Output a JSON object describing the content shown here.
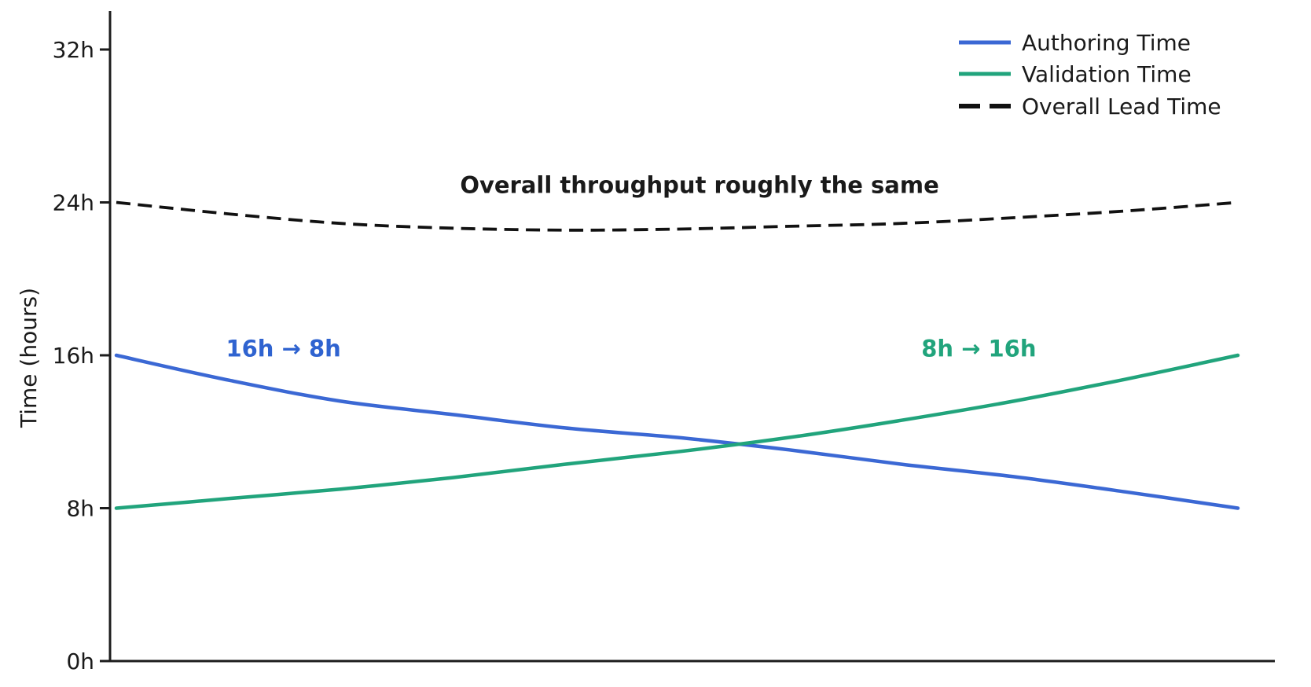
{
  "chart_data": {
    "type": "line",
    "title": "",
    "xlabel": "",
    "ylabel": "Time (hours)",
    "xticks": [],
    "yticks": [
      {
        "label": "0h",
        "value": 0
      },
      {
        "label": "8h",
        "value": 8
      },
      {
        "label": "16h",
        "value": 16
      },
      {
        "label": "24h",
        "value": 24
      },
      {
        "label": "32h",
        "value": 32
      }
    ],
    "ylim": [
      0,
      34
    ],
    "xlim": [
      0,
      1
    ],
    "grid": false,
    "x": [
      0,
      0.1,
      0.2,
      0.3,
      0.4,
      0.5,
      0.6,
      0.7,
      0.8,
      0.9,
      1
    ],
    "series": [
      {
        "name": "Authoring Time",
        "color": "#3b68d4",
        "dash": "solid",
        "values": [
          16,
          14.7,
          13.6,
          12.9,
          12.2,
          11.7,
          11.05,
          10.3,
          9.65,
          8.85,
          8
        ]
      },
      {
        "name": "Validation Time",
        "color": "#21a47c",
        "dash": "solid",
        "values": [
          8,
          8.5,
          9,
          9.6,
          10.3,
          10.95,
          11.7,
          12.6,
          13.6,
          14.75,
          16
        ]
      },
      {
        "name": "Overall Lead Time",
        "color": "#111111",
        "dash": "dashed",
        "values": [
          24,
          23.4,
          22.9,
          22.65,
          22.55,
          22.6,
          22.75,
          22.9,
          23.2,
          23.55,
          24
        ]
      }
    ],
    "legend": {
      "position": "top-right"
    },
    "annotations": [
      {
        "text": "Overall throughput roughly the same",
        "color": "#1a1a1a",
        "x": 0.52,
        "y_hours": 24.9,
        "bold": true
      },
      {
        "text": "16h → 8h",
        "color": "#2f63d0",
        "x": 0.149,
        "y_hours": 16.35,
        "bold": true
      },
      {
        "text": "8h → 16h",
        "color": "#21a47c",
        "x": 0.769,
        "y_hours": 16.35,
        "bold": true
      }
    ]
  }
}
